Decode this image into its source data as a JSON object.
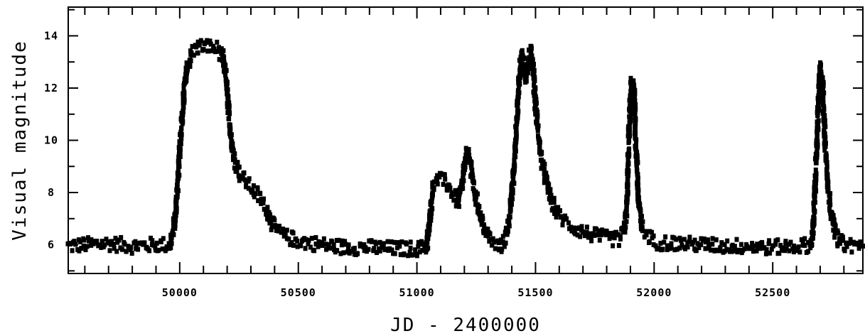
{
  "chart_data": {
    "type": "scatter",
    "title": "",
    "xlabel": "JD - 2400000",
    "ylabel": "Visual  magnitude",
    "xlim": [
      49530,
      52880
    ],
    "ylim": [
      15.1,
      4.9
    ],
    "y_inverted": true,
    "x_ticks": [
      50000,
      50500,
      51000,
      51500,
      52000,
      52500
    ],
    "x_tick_labels": [
      "50000",
      "50500",
      "51000",
      "51500",
      "52000",
      "52500"
    ],
    "y_ticks": [
      6,
      8,
      10,
      12,
      14
    ],
    "y_tick_labels": [
      "6",
      "8",
      "10",
      "12",
      "14"
    ],
    "x_minor_step": 100,
    "y_minor_step": 1,
    "grid": false,
    "marker_color": "#000000",
    "series": [
      {
        "points": [
          [
            49530,
            5.95
          ],
          [
            49600,
            6.0
          ],
          [
            49700,
            6.05
          ],
          [
            49800,
            5.95
          ],
          [
            49900,
            6.0
          ],
          [
            49960,
            6.0
          ],
          [
            49975,
            6.6
          ],
          [
            49985,
            7.5
          ],
          [
            49992,
            8.5
          ],
          [
            50000,
            9.6
          ],
          [
            50010,
            10.8
          ],
          [
            50020,
            12.0
          ],
          [
            50035,
            12.9
          ],
          [
            50055,
            13.4
          ],
          [
            50080,
            13.6
          ],
          [
            50120,
            13.6
          ],
          [
            50160,
            13.5
          ],
          [
            50180,
            13.2
          ],
          [
            50195,
            12.4
          ],
          [
            50205,
            11.3
          ],
          [
            50215,
            10.2
          ],
          [
            50230,
            9.3
          ],
          [
            50255,
            8.7
          ],
          [
            50290,
            8.3
          ],
          [
            50330,
            7.9
          ],
          [
            50370,
            7.3
          ],
          [
            50400,
            6.6
          ],
          [
            50450,
            6.3
          ],
          [
            50500,
            6.15
          ],
          [
            50600,
            6.0
          ],
          [
            50700,
            5.9
          ],
          [
            50800,
            5.9
          ],
          [
            50900,
            5.85
          ],
          [
            51000,
            5.85
          ],
          [
            51040,
            5.9
          ],
          [
            51050,
            6.5
          ],
          [
            51060,
            7.5
          ],
          [
            51070,
            8.3
          ],
          [
            51090,
            8.5
          ],
          [
            51120,
            8.4
          ],
          [
            51150,
            8.0
          ],
          [
            51175,
            7.6
          ],
          [
            51190,
            8.2
          ],
          [
            51200,
            9.0
          ],
          [
            51210,
            9.5
          ],
          [
            51225,
            9.2
          ],
          [
            51240,
            8.2
          ],
          [
            51265,
            7.2
          ],
          [
            51290,
            6.5
          ],
          [
            51320,
            6.05
          ],
          [
            51350,
            5.9
          ],
          [
            51375,
            6.3
          ],
          [
            51395,
            7.4
          ],
          [
            51410,
            9.0
          ],
          [
            51420,
            10.6
          ],
          [
            51430,
            12.2
          ],
          [
            51440,
            13.3
          ],
          [
            51450,
            13.0
          ],
          [
            51460,
            12.4
          ],
          [
            51470,
            12.9
          ],
          [
            51480,
            13.5
          ],
          [
            51490,
            12.7
          ],
          [
            51500,
            11.4
          ],
          [
            51510,
            10.3
          ],
          [
            51525,
            9.3
          ],
          [
            51545,
            8.4
          ],
          [
            51570,
            7.6
          ],
          [
            51600,
            7.1
          ],
          [
            51650,
            6.7
          ],
          [
            51700,
            6.5
          ],
          [
            51750,
            6.35
          ],
          [
            51800,
            6.25
          ],
          [
            51850,
            6.2
          ],
          [
            51875,
            6.5
          ],
          [
            51885,
            7.5
          ],
          [
            51895,
            10.5
          ],
          [
            51905,
            12.2
          ],
          [
            51915,
            12.0
          ],
          [
            51925,
            9.5
          ],
          [
            51935,
            7.6
          ],
          [
            51950,
            6.6
          ],
          [
            52000,
            6.1
          ],
          [
            52100,
            6.05
          ],
          [
            52200,
            6.0
          ],
          [
            52300,
            5.95
          ],
          [
            52400,
            5.95
          ],
          [
            52500,
            5.9
          ],
          [
            52600,
            5.95
          ],
          [
            52660,
            6.0
          ],
          [
            52670,
            6.5
          ],
          [
            52680,
            8.5
          ],
          [
            52690,
            10.8
          ],
          [
            52700,
            12.8
          ],
          [
            52710,
            12.2
          ],
          [
            52720,
            10.0
          ],
          [
            52735,
            8.0
          ],
          [
            52755,
            6.8
          ],
          [
            52780,
            6.1
          ],
          [
            52820,
            6.0
          ],
          [
            52880,
            5.95
          ]
        ]
      }
    ]
  }
}
